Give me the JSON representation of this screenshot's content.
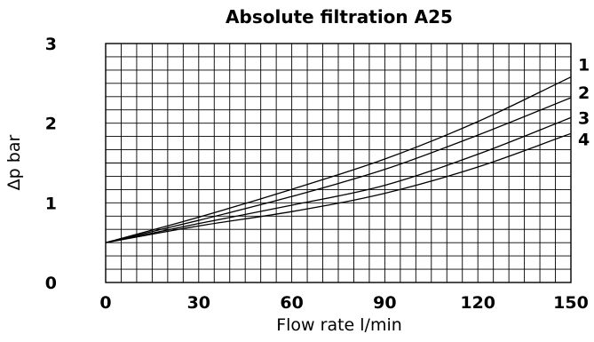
{
  "chart_data": {
    "type": "line",
    "title": "Absolute filtration A25",
    "xlabel": "Flow rate l/min",
    "ylabel": "Δp bar",
    "xlim": [
      0,
      150
    ],
    "ylim": [
      0,
      3
    ],
    "x_ticks": [
      "0",
      "30",
      "60",
      "90",
      "120",
      "150"
    ],
    "y_ticks": [
      "0",
      "1",
      "2",
      "3"
    ],
    "grid": true,
    "x": [
      0,
      30,
      60,
      90,
      120,
      150
    ],
    "series": [
      {
        "name": "1",
        "values": [
          0.5,
          0.82,
          1.17,
          1.55,
          2.02,
          2.58
        ]
      },
      {
        "name": "2",
        "values": [
          0.5,
          0.78,
          1.08,
          1.42,
          1.85,
          2.32
        ]
      },
      {
        "name": "3",
        "values": [
          0.5,
          0.74,
          0.97,
          1.22,
          1.61,
          2.07
        ]
      },
      {
        "name": "4",
        "values": [
          0.5,
          0.71,
          0.89,
          1.12,
          1.45,
          1.87
        ]
      }
    ]
  }
}
